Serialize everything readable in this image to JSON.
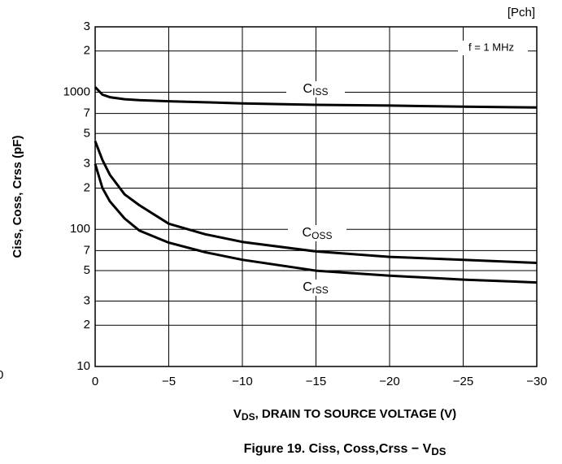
{
  "chart_data": {
    "type": "line",
    "corner_label": "[Pch]",
    "annotation": "f = 1 MHz",
    "stray_label": "0",
    "x_label": "VDS, DRAIN TO SOURCE VOLTAGE (V)",
    "y_label": "Ciss, Coss, Crss (pF)",
    "caption": "Figure 19. Ciss, Coss,Crss − VDS",
    "log_y": true,
    "grid": true,
    "color": "#000000",
    "xlim": [
      0,
      -30
    ],
    "xticks": [
      0,
      {
        "value": -5,
        "label": "−5"
      },
      {
        "value": -10,
        "label": "−10"
      },
      {
        "value": -15,
        "label": "−15"
      },
      {
        "value": -20,
        "label": "−20"
      },
      {
        "value": -25,
        "label": "−25"
      },
      {
        "value": -30,
        "label": "−30"
      }
    ],
    "ylim": [
      10,
      3000
    ],
    "yticks": [
      10,
      {
        "value": 20,
        "label": "2"
      },
      {
        "value": 30,
        "label": "3"
      },
      {
        "value": 50,
        "label": "5"
      },
      {
        "value": 70,
        "label": "7"
      },
      100,
      {
        "value": 200,
        "label": "2"
      },
      {
        "value": 300,
        "label": "3"
      },
      {
        "value": 500,
        "label": "5"
      },
      {
        "value": 700,
        "label": "7"
      },
      1000,
      {
        "value": 2000,
        "label": "2"
      },
      {
        "value": 3000,
        "label": "3"
      }
    ],
    "x": [
      0,
      -0.5,
      -1,
      -2,
      -3,
      -5,
      -7.5,
      -10,
      -15,
      -20,
      -25,
      -30
    ],
    "series": [
      {
        "name": "CISS",
        "color": "#000000",
        "values": [
          1090,
          960,
          920,
          890,
          875,
          860,
          845,
          830,
          810,
          800,
          785,
          775
        ]
      },
      {
        "name": "COSS",
        "color": "#000000",
        "values": [
          440,
          320,
          250,
          180,
          150,
          110,
          92,
          81,
          69,
          63,
          60,
          57
        ]
      },
      {
        "name": "CrSS",
        "color": "#000000",
        "values": [
          300,
          200,
          160,
          120,
          98,
          80,
          68,
          60,
          50,
          46,
          43,
          41
        ]
      }
    ]
  }
}
